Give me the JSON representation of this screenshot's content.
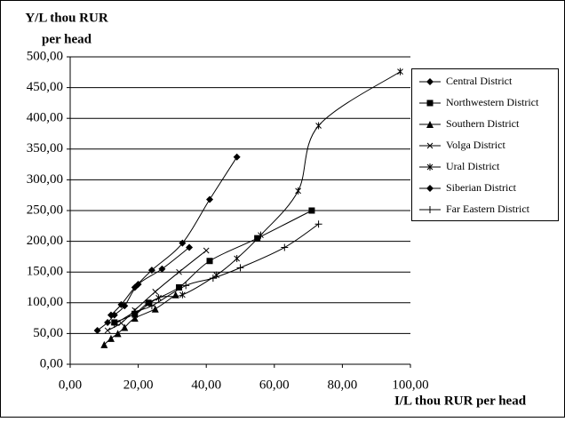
{
  "chart_data": {
    "type": "scatter-smooth",
    "ylabel": [
      "Y/L thou RUR",
      "per head"
    ],
    "xlabel": "I/L thou RUR per head",
    "xlim": [
      0,
      100
    ],
    "xticks": [
      {
        "value": 0,
        "label": "0,00"
      },
      {
        "value": 20,
        "label": "20,00"
      },
      {
        "value": 40,
        "label": "40,00"
      },
      {
        "value": 60,
        "label": "60,00"
      },
      {
        "value": 80,
        "label": "80,00"
      },
      {
        "value": 100,
        "label": "100,00"
      }
    ],
    "ylim": [
      0,
      500
    ],
    "yticks": [
      {
        "value": 0,
        "label": "0,00"
      },
      {
        "value": 50,
        "label": "50,00"
      },
      {
        "value": 100,
        "label": "100,00"
      },
      {
        "value": 150,
        "label": "150,00"
      },
      {
        "value": 200,
        "label": "200,00"
      },
      {
        "value": 250,
        "label": "250,00"
      },
      {
        "value": 300,
        "label": "300,00"
      },
      {
        "value": 350,
        "label": "350,00"
      },
      {
        "value": 400,
        "label": "400,00"
      },
      {
        "value": 450,
        "label": "450,00"
      },
      {
        "value": 500,
        "label": "500,00"
      }
    ],
    "grid": true,
    "legend": "right",
    "series": [
      {
        "name": "Central District",
        "color": "#000000",
        "marker": "diamond",
        "x": [
          12,
          15,
          19,
          24,
          33,
          41,
          49
        ],
        "values": [
          80,
          97,
          125,
          153,
          197,
          268,
          337
        ]
      },
      {
        "name": " Northwestern District",
        "color": "#000000",
        "marker": "square",
        "x": [
          13,
          19,
          23,
          32,
          41,
          55,
          71
        ],
        "values": [
          68,
          82,
          100,
          125,
          168,
          205,
          250
        ]
      },
      {
        "name": "Southern District",
        "color": "#000000",
        "marker": "triangle",
        "x": [
          10,
          12,
          14,
          16,
          19,
          25,
          31
        ],
        "values": [
          32,
          42,
          50,
          60,
          75,
          90,
          113
        ]
      },
      {
        "name": "Volga District",
        "color": "#000000",
        "marker": "x",
        "x": [
          11,
          15,
          19,
          25,
          32,
          40
        ],
        "values": [
          55,
          67,
          88,
          118,
          150,
          185
        ]
      },
      {
        "name": "Ural District",
        "color": "#000000",
        "marker": "star",
        "x": [
          19,
          26,
          33,
          43,
          49,
          56,
          67,
          73,
          97
        ],
        "values": [
          80,
          108,
          113,
          145,
          172,
          210,
          282,
          388,
          476
        ]
      },
      {
        "name": "Siberian District",
        "color": "#000000",
        "marker": "diamond",
        "x": [
          8,
          11,
          13,
          16,
          20,
          27,
          35
        ],
        "values": [
          55,
          68,
          80,
          95,
          130,
          155,
          190
        ]
      },
      {
        "name": "Far Eastern District",
        "color": "#000000",
        "marker": "plus",
        "x": [
          13,
          19,
          24,
          34,
          42,
          50,
          63,
          73
        ],
        "values": [
          65,
          85,
          95,
          128,
          140,
          157,
          190,
          228
        ]
      }
    ]
  }
}
